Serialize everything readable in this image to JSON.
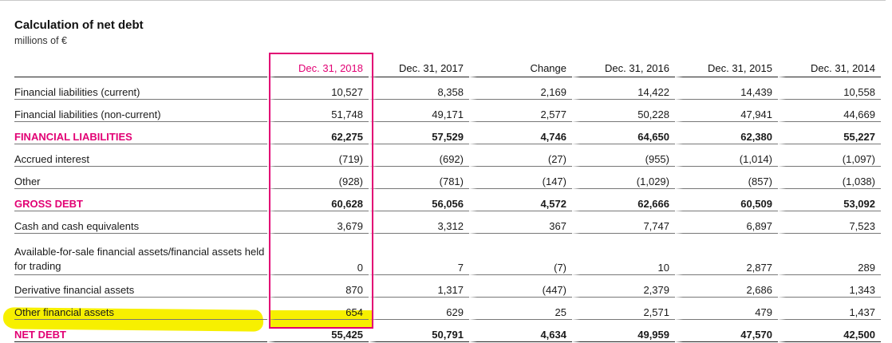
{
  "title": "Calculation of net debt",
  "subtitle": "millions of €",
  "colors": {
    "accent": "#e20074",
    "marker": "#f7f000"
  },
  "columns": [
    "Dec. 31, 2018",
    "Dec. 31, 2017",
    "Change",
    "Dec. 31, 2016",
    "Dec. 31, 2015",
    "Dec. 31, 2014"
  ],
  "rows": [
    {
      "label": "Financial liabilities (current)",
      "values": [
        "10,527",
        "8,358",
        "2,169",
        "14,422",
        "14,439",
        "10,558"
      ]
    },
    {
      "label": "Financial liabilities (non-current)",
      "values": [
        "51,748",
        "49,171",
        "2,577",
        "50,228",
        "47,941",
        "44,669"
      ]
    },
    {
      "label": "FINANCIAL LIABILITIES",
      "values": [
        "62,275",
        "57,529",
        "4,746",
        "64,650",
        "62,380",
        "55,227"
      ]
    },
    {
      "label": "Accrued interest",
      "values": [
        "(719)",
        "(692)",
        "(27)",
        "(955)",
        "(1,014)",
        "(1,097)"
      ]
    },
    {
      "label": "Other",
      "values": [
        "(928)",
        "(781)",
        "(147)",
        "(1,029)",
        "(857)",
        "(1,038)"
      ]
    },
    {
      "label": "GROSS DEBT",
      "values": [
        "60,628",
        "56,056",
        "4,572",
        "62,666",
        "60,509",
        "53,092"
      ]
    },
    {
      "label": "Cash and cash equivalents",
      "values": [
        "3,679",
        "3,312",
        "367",
        "7,747",
        "6,897",
        "7,523"
      ]
    },
    {
      "label": "Available-for-sale financial assets/financial assets held for trading",
      "values": [
        "0",
        "7",
        "(7)",
        "10",
        "2,877",
        "289"
      ]
    },
    {
      "label": "Derivative financial assets",
      "values": [
        "870",
        "1,317",
        "(447)",
        "2,379",
        "2,686",
        "1,343"
      ]
    },
    {
      "label": "Other financial assets",
      "values": [
        "654",
        "629",
        "25",
        "2,571",
        "479",
        "1,437"
      ]
    },
    {
      "label": "NET DEBT",
      "values": [
        "55,425",
        "50,791",
        "4,634",
        "49,959",
        "47,570",
        "42,500"
      ]
    }
  ]
}
